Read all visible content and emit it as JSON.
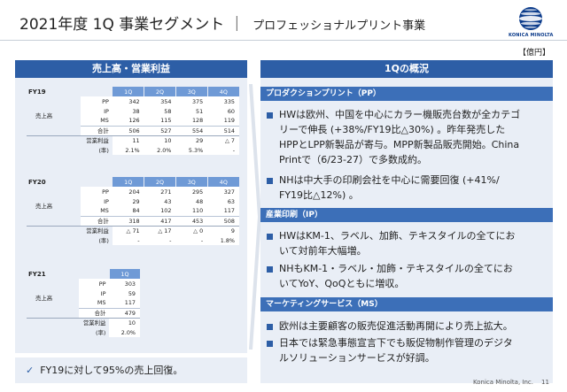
{
  "header": {
    "title": "2021年度 1Q 事業セグメント",
    "separator": "｜",
    "subtitle": "プロフェッショナルプリント事業",
    "logo_text": "KONICA MINOLTA",
    "unit_label": "【億円】"
  },
  "left": {
    "heading": "売上高・営業利益",
    "tables": [
      {
        "fy": "FY19",
        "quarters": [
          "1Q",
          "2Q",
          "3Q",
          "4Q"
        ],
        "group_label": "売上高",
        "rows": [
          {
            "label": "PP",
            "values": [
              "342",
              "354",
              "375",
              "335"
            ]
          },
          {
            "label": "IP",
            "values": [
              "38",
              "58",
              "51",
              "60"
            ]
          },
          {
            "label": "MS",
            "values": [
              "126",
              "115",
              "128",
              "119"
            ]
          },
          {
            "label": "合計",
            "values": [
              "506",
              "527",
              "554",
              "514"
            ]
          },
          {
            "label": "営業利益",
            "values": [
              "11",
              "10",
              "29",
              "△ 7"
            ]
          },
          {
            "label": "(率)",
            "values": [
              "2.1%",
              "2.0%",
              "5.3%",
              "-"
            ]
          }
        ]
      },
      {
        "fy": "FY20",
        "quarters": [
          "1Q",
          "2Q",
          "3Q",
          "4Q"
        ],
        "group_label": "売上高",
        "rows": [
          {
            "label": "PP",
            "values": [
              "204",
              "271",
              "295",
              "327"
            ]
          },
          {
            "label": "IP",
            "values": [
              "29",
              "43",
              "48",
              "63"
            ]
          },
          {
            "label": "MS",
            "values": [
              "84",
              "102",
              "110",
              "117"
            ]
          },
          {
            "label": "合計",
            "values": [
              "318",
              "417",
              "453",
              "508"
            ]
          },
          {
            "label": "営業利益",
            "values": [
              "△ 71",
              "△ 17",
              "△ 0",
              "9"
            ]
          },
          {
            "label": "(率)",
            "values": [
              "-",
              "-",
              "-",
              "1.8%"
            ]
          }
        ]
      },
      {
        "fy": "FY21",
        "quarters": [
          "1Q"
        ],
        "group_label": "売上高",
        "rows": [
          {
            "label": "PP",
            "values": [
              "303"
            ]
          },
          {
            "label": "IP",
            "values": [
              "59"
            ]
          },
          {
            "label": "MS",
            "values": [
              "117"
            ]
          },
          {
            "label": "合計",
            "values": [
              "479"
            ]
          },
          {
            "label": "営業利益",
            "values": [
              "10"
            ]
          },
          {
            "label": "(率)",
            "values": [
              "2.0%"
            ]
          }
        ]
      }
    ],
    "note_icon": "check-icon",
    "note": "FY19に対して95%の売上回復。"
  },
  "right": {
    "heading": "1Qの概況",
    "sections": [
      {
        "title": "プロダクションプリント（PP）",
        "bullets": [
          [
            "HWは欧州、中国を中心にカラー機販売台数が全カテゴ",
            "リーで伸長 (+38%/FY19比△30%) 。昨年発売した",
            "HPPとLPP新製品が寄与。MPP新製品販売開始。China",
            "Printで（6/23-27）で多数成約。"
          ],
          [
            "NHは中大手の印刷会社を中心に需要回復 (+41%/",
            "FY19比△12%) 。"
          ]
        ]
      },
      {
        "title": "産業印刷（IP）",
        "bullets": [
          [
            "HWはKM-1、ラベル、加飾、テキスタイルの全てにお",
            "いて対前年大幅増。"
          ],
          [
            "NHもKM-1・ラベル・加飾・テキスタイルの全てにお",
            "いてYoY、QoQともに増収。"
          ]
        ]
      },
      {
        "title": "マーケティングサービス（MS）",
        "bullets": [
          [
            "欧州は主要顧客の販売促進活動再開により売上拡大。"
          ],
          [
            "日本では緊急事態宣言下でも販促物制作管理のデジタ",
            "ルソリューションサービスが好調。"
          ]
        ]
      }
    ]
  },
  "footer": {
    "company": "Konica Minolta, Inc.",
    "page": "11"
  },
  "colors": {
    "accent": "#2d5ea6",
    "quarter_header": "#6f9ad6",
    "panel_bg": "#e9eef6"
  }
}
